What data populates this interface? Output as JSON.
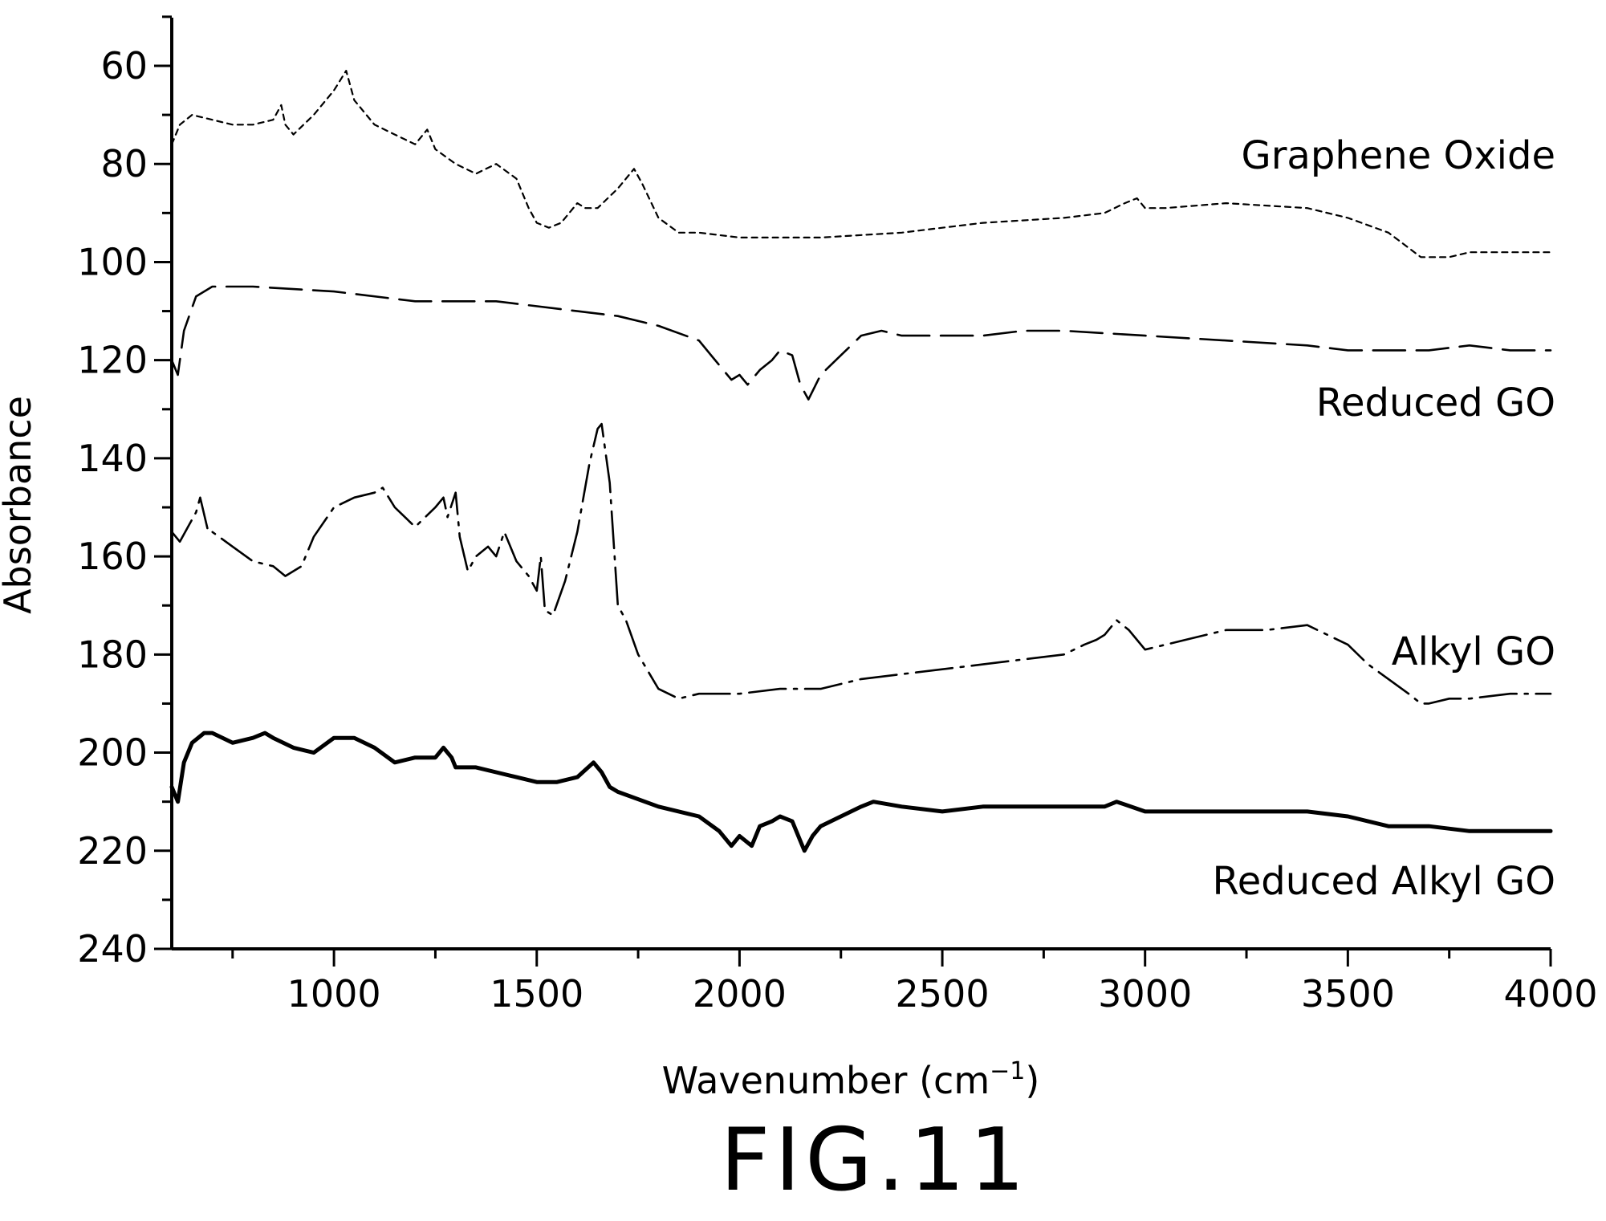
{
  "figure": {
    "caption": "FIG.11"
  },
  "chart_data": {
    "type": "line",
    "xlabel": "Wavenumber (cm",
    "xlabel_sup": "−1",
    "xlabel_close": ")",
    "ylabel": "Absorbance",
    "xlim": [
      600,
      4000
    ],
    "ylim": [
      240,
      50
    ],
    "y_inverted": true,
    "grid": false,
    "legend": "none (series labeled directly at right)",
    "x_ticks": [
      1000,
      1500,
      2000,
      2500,
      3000,
      3500,
      4000
    ],
    "y_ticks": [
      60,
      80,
      100,
      120,
      140,
      160,
      180,
      200,
      220,
      240
    ],
    "series": [
      {
        "name": "Graphene Oxide",
        "style": "dotted",
        "x": [
          600,
          620,
          650,
          700,
          750,
          800,
          850,
          870,
          880,
          900,
          950,
          1000,
          1030,
          1050,
          1100,
          1150,
          1200,
          1230,
          1250,
          1300,
          1350,
          1400,
          1450,
          1480,
          1500,
          1530,
          1560,
          1600,
          1620,
          1650,
          1700,
          1740,
          1760,
          1800,
          1850,
          1900,
          2000,
          2200,
          2400,
          2600,
          2800,
          2900,
          2950,
          2980,
          3000,
          3050,
          3200,
          3400,
          3500,
          3600,
          3680,
          3750,
          3800,
          3900,
          4000
        ],
        "values": [
          76,
          72,
          70,
          71,
          72,
          72,
          71,
          68,
          72,
          74,
          70,
          65,
          61,
          67,
          72,
          74,
          76,
          73,
          77,
          80,
          82,
          80,
          83,
          89,
          92,
          93,
          92,
          88,
          89,
          89,
          85,
          81,
          84,
          91,
          94,
          94,
          95,
          95,
          94,
          92,
          91,
          90,
          88,
          87,
          89,
          89,
          88,
          89,
          91,
          94,
          99,
          99,
          98,
          98,
          98
        ]
      },
      {
        "name": "Reduced GO",
        "style": "long dash",
        "x": [
          600,
          615,
          630,
          660,
          700,
          800,
          1000,
          1200,
          1400,
          1600,
          1700,
          1800,
          1900,
          1950,
          1980,
          2000,
          2020,
          2050,
          2080,
          2100,
          2130,
          2150,
          2170,
          2200,
          2250,
          2300,
          2350,
          2400,
          2500,
          2600,
          2700,
          2800,
          3000,
          3200,
          3400,
          3500,
          3600,
          3700,
          3800,
          3900,
          4000
        ],
        "values": [
          120,
          123,
          114,
          107,
          105,
          105,
          106,
          108,
          108,
          110,
          111,
          113,
          116,
          121,
          124,
          123,
          125,
          122,
          120,
          118,
          119,
          125,
          128,
          123,
          119,
          115,
          114,
          115,
          115,
          115,
          114,
          114,
          115,
          116,
          117,
          118,
          118,
          118,
          117,
          118,
          118
        ]
      },
      {
        "name": "Alkyl GO",
        "style": "mixed dash",
        "x": [
          600,
          620,
          640,
          660,
          670,
          690,
          700,
          750,
          800,
          850,
          880,
          920,
          950,
          1000,
          1050,
          1100,
          1120,
          1150,
          1200,
          1250,
          1270,
          1280,
          1300,
          1310,
          1330,
          1350,
          1380,
          1400,
          1420,
          1450,
          1480,
          1500,
          1510,
          1520,
          1540,
          1570,
          1600,
          1630,
          1650,
          1660,
          1680,
          1700,
          1720,
          1750,
          1800,
          1850,
          1900,
          2000,
          2100,
          2200,
          2300,
          2400,
          2500,
          2600,
          2700,
          2800,
          2850,
          2880,
          2900,
          2930,
          2960,
          2980,
          3000,
          3050,
          3100,
          3200,
          3300,
          3400,
          3500,
          3550,
          3600,
          3650,
          3680,
          3700,
          3750,
          3800,
          3900,
          4000
        ],
        "values": [
          155,
          157,
          154,
          151,
          148,
          155,
          155,
          158,
          161,
          162,
          164,
          162,
          156,
          150,
          148,
          147,
          146,
          150,
          154,
          150,
          148,
          152,
          147,
          156,
          163,
          160,
          158,
          160,
          155,
          161,
          164,
          167,
          160,
          171,
          172,
          165,
          155,
          141,
          134,
          133,
          145,
          170,
          173,
          180,
          187,
          189,
          188,
          188,
          187,
          187,
          185,
          184,
          183,
          182,
          181,
          180,
          178,
          177,
          176,
          173,
          175,
          177,
          179,
          178,
          177,
          175,
          175,
          174,
          178,
          182,
          185,
          188,
          190,
          190,
          189,
          189,
          188,
          188
        ]
      },
      {
        "name": "Reduced Alkyl GO",
        "style": "solid thick",
        "x": [
          600,
          615,
          630,
          650,
          680,
          700,
          750,
          800,
          830,
          850,
          900,
          950,
          1000,
          1050,
          1100,
          1150,
          1200,
          1250,
          1270,
          1290,
          1300,
          1350,
          1400,
          1450,
          1500,
          1550,
          1600,
          1640,
          1660,
          1680,
          1700,
          1800,
          1900,
          1950,
          1980,
          2000,
          2030,
          2050,
          2080,
          2100,
          2130,
          2150,
          2160,
          2180,
          2200,
          2250,
          2300,
          2330,
          2400,
          2500,
          2600,
          2650,
          2700,
          2800,
          2900,
          2930,
          3000,
          3200,
          3400,
          3500,
          3600,
          3700,
          3800,
          3900,
          4000
        ],
        "values": [
          207,
          210,
          202,
          198,
          196,
          196,
          198,
          197,
          196,
          197,
          199,
          200,
          197,
          197,
          199,
          202,
          201,
          201,
          199,
          201,
          203,
          203,
          204,
          205,
          206,
          206,
          205,
          202,
          204,
          207,
          208,
          211,
          213,
          216,
          219,
          217,
          219,
          215,
          214,
          213,
          214,
          218,
          220,
          217,
          215,
          213,
          211,
          210,
          211,
          212,
          211,
          211,
          211,
          211,
          211,
          210,
          212,
          212,
          212,
          213,
          215,
          215,
          216,
          216,
          216
        ]
      }
    ]
  }
}
